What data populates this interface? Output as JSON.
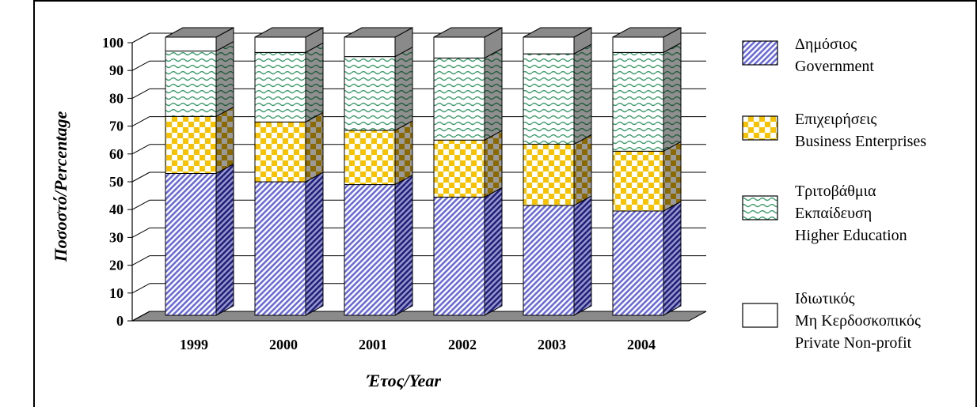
{
  "chart_data": {
    "type": "bar",
    "stacked": true,
    "three_d": true,
    "categories": [
      "1999",
      "2000",
      "2001",
      "2002",
      "2003",
      "2004"
    ],
    "ylim": [
      0,
      100
    ],
    "yticks": [
      0,
      10,
      20,
      30,
      40,
      50,
      60,
      70,
      80,
      90,
      100
    ],
    "xlabel": "Έτος/Year",
    "ylabel": "Ποσοστό/Percentage",
    "grid": true,
    "legend_position": "right",
    "series": [
      {
        "name_lines": [
          "Δημόσιος",
          "Government"
        ],
        "values": [
          51,
          48,
          47,
          42.5,
          39.5,
          37.5
        ],
        "color": "#6a6ad8",
        "pattern": "diagonal-hatch"
      },
      {
        "name_lines": [
          "Επιχειρήσεις",
          "Business Enterprises"
        ],
        "values": [
          20.5,
          21.5,
          19.5,
          20.5,
          22,
          21.5
        ],
        "color": "#f7c200",
        "pattern": "checker"
      },
      {
        "name_lines": [
          "Τριτοβάθμια",
          "Εκπαίδευση",
          "Higher Education"
        ],
        "values": [
          23.5,
          25,
          26.5,
          29.5,
          32.5,
          35.5
        ],
        "color": "#3a9a6a",
        "pattern": "wave"
      },
      {
        "name_lines": [
          "Ιδιωτικός",
          "Μη Κερδοσκοπικός",
          "Private Non-profit"
        ],
        "values": [
          5,
          5.5,
          7,
          7.5,
          6,
          5.5
        ],
        "color": "#ffffff",
        "pattern": "solid"
      }
    ]
  }
}
